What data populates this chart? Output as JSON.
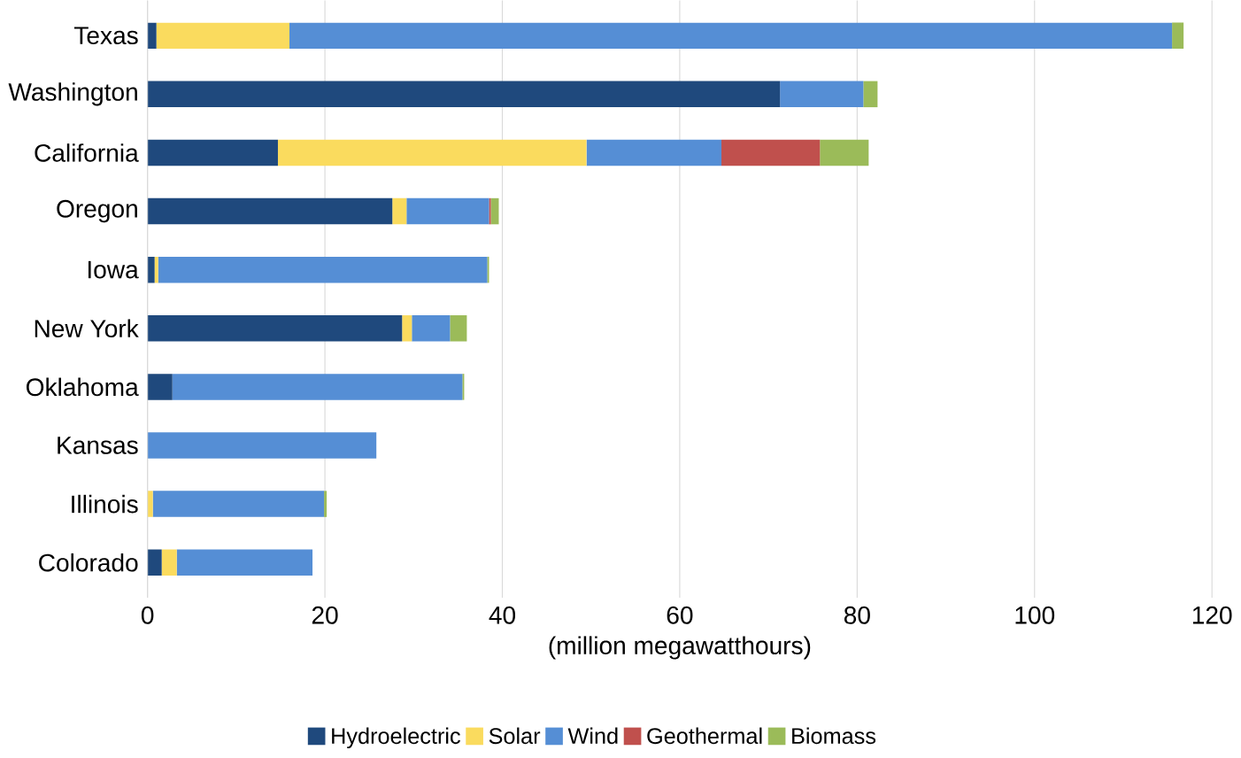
{
  "chart_data": {
    "type": "bar",
    "orientation": "horizontal",
    "stacked": true,
    "xlabel": "(million megawatthours)",
    "categories": [
      "Texas",
      "Washington",
      "California",
      "Oregon",
      "Iowa",
      "New York",
      "Oklahoma",
      "Kansas",
      "Illinois",
      "Colorado"
    ],
    "series": [
      {
        "name": "Hydroelectric",
        "color": "#1f497d",
        "values": [
          1.0,
          71.3,
          14.7,
          27.6,
          0.8,
          28.7,
          2.8,
          0,
          0,
          1.6
        ]
      },
      {
        "name": "Solar",
        "color": "#fadb5e",
        "values": [
          15.0,
          0,
          34.8,
          1.6,
          0.4,
          1.1,
          0,
          0,
          0.6,
          1.7
        ]
      },
      {
        "name": "Wind",
        "color": "#558ed5",
        "values": [
          99.5,
          9.4,
          15.2,
          9.3,
          37.1,
          4.3,
          32.7,
          25.8,
          19.3,
          15.3
        ]
      },
      {
        "name": "Geothermal",
        "color": "#c0504d",
        "values": [
          0,
          0,
          11.1,
          0.2,
          0,
          0,
          0,
          0,
          0,
          0
        ]
      },
      {
        "name": "Biomass",
        "color": "#9bbb59",
        "values": [
          1.3,
          1.6,
          5.5,
          0.9,
          0.2,
          1.9,
          0.2,
          0,
          0.3,
          0
        ]
      }
    ],
    "xlim": [
      0,
      120
    ],
    "xticks": [
      0,
      20,
      40,
      60,
      80,
      100,
      120
    ],
    "grid": "x",
    "legend": "bottom"
  }
}
